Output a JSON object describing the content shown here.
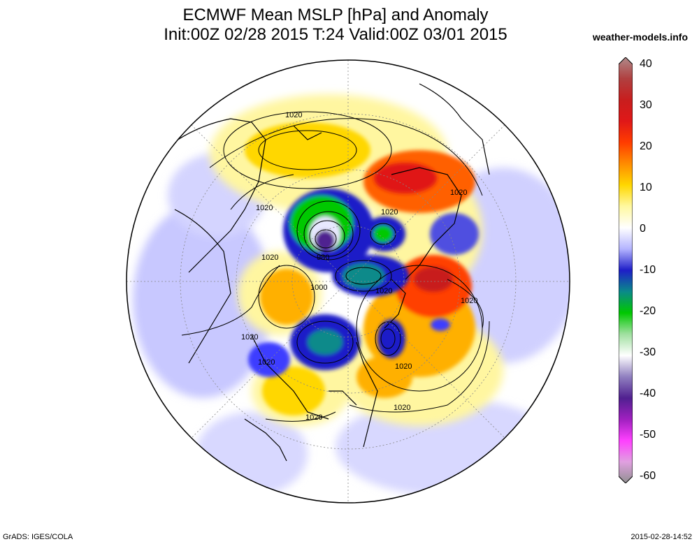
{
  "header": {
    "title": "ECMWF Mean MSLP [hPa] and Anomaly",
    "subtitle": "Init:00Z 02/28 2015 T:24 Valid:00Z 03/01 2015",
    "site": "weather-models.info"
  },
  "footer": {
    "credit": "GrADS: IGES/COLA",
    "timestamp": "2015-02-28-14:52"
  },
  "colorbar": {
    "labels": [
      "40",
      "30",
      "20",
      "10",
      "0",
      "-10",
      "-20",
      "-30",
      "-40",
      "-50",
      "-60"
    ],
    "stops": [
      {
        "value": 40,
        "color": "#b08a8a"
      },
      {
        "value": 35,
        "color": "#b04040"
      },
      {
        "value": 30,
        "color": "#c81e1e"
      },
      {
        "value": 25,
        "color": "#e01818"
      },
      {
        "value": 20,
        "color": "#ff3c00"
      },
      {
        "value": 15,
        "color": "#ff8c00"
      },
      {
        "value": 10,
        "color": "#ffd700"
      },
      {
        "value": 5,
        "color": "#fff8a0"
      },
      {
        "value": 0,
        "color": "#ffffff"
      },
      {
        "value": -5,
        "color": "#b4b4ff"
      },
      {
        "value": -10,
        "color": "#1e1ec8"
      },
      {
        "value": -15,
        "color": "#0a8a8a"
      },
      {
        "value": -20,
        "color": "#00c800"
      },
      {
        "value": -25,
        "color": "#a0e0a0"
      },
      {
        "value": -30,
        "color": "#ffffff"
      },
      {
        "value": -35,
        "color": "#9080c0"
      },
      {
        "value": -40,
        "color": "#502090"
      },
      {
        "value": -45,
        "color": "#a020c0"
      },
      {
        "value": -50,
        "color": "#ff40ff"
      },
      {
        "value": -55,
        "color": "#e0a0e0"
      },
      {
        "value": -60,
        "color": "#909090"
      }
    ]
  },
  "isobar_labels": [
    "1020",
    "1020",
    "1020",
    "1020",
    "1020",
    "980",
    "1000",
    "1020",
    "1020",
    "1020",
    "1020",
    "1020",
    "1020",
    "1020",
    "1020"
  ]
}
